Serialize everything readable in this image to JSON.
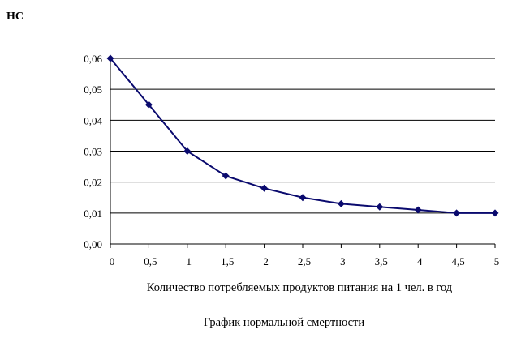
{
  "chart_data": {
    "type": "line",
    "ylabel": "НС",
    "xlabel": "Количество потребляемых продуктов питания на 1 чел. в год",
    "caption": "График нормальной смертности",
    "x": [
      0,
      0.5,
      1,
      1.5,
      2,
      2.5,
      3,
      3.5,
      4,
      4.5,
      5
    ],
    "xtick_labels": [
      "0",
      "0,5",
      "1",
      "1,5",
      "2",
      "2,5",
      "3",
      "3,5",
      "4",
      "4,5",
      "5"
    ],
    "ytick_values": [
      0,
      0.01,
      0.02,
      0.03,
      0.04,
      0.05,
      0.06
    ],
    "ytick_labels": [
      "0,00",
      "0,01",
      "0,02",
      "0,03",
      "0,04",
      "0,05",
      "0,06"
    ],
    "ylim": [
      0,
      0.06
    ],
    "xlim": [
      0,
      5
    ],
    "grid": "horizontal",
    "series": [
      {
        "values": [
          0.06,
          0.045,
          0.03,
          0.022,
          0.018,
          0.015,
          0.013,
          0.012,
          0.011,
          0.01,
          0.01
        ]
      }
    ],
    "line_color": "#0a0a6e",
    "marker": "diamond"
  }
}
